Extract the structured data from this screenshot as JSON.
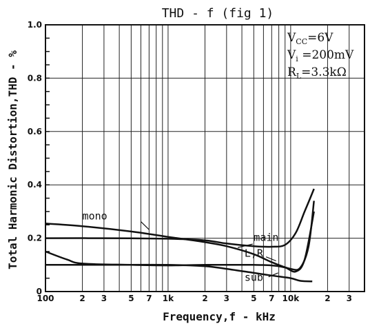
{
  "chart_data": {
    "type": "line",
    "title": "THD - f (fig 1)",
    "xlabel": "Frequency,f - kHz",
    "ylabel": "Total Harmonic Distortion,THD - %",
    "x_scale": "log",
    "xlim": [
      100,
      40000
    ],
    "ylim": [
      0,
      1.0
    ],
    "grid": true,
    "y_ticks": [
      {
        "value": 0,
        "label": "0"
      },
      {
        "value": 0.2,
        "label": "0.2"
      },
      {
        "value": 0.4,
        "label": "0.4"
      },
      {
        "value": 0.6,
        "label": "0.6"
      },
      {
        "value": 0.8,
        "label": "0.8"
      },
      {
        "value": 1.0,
        "label": "1.0"
      }
    ],
    "x_ticks": [
      {
        "value": 100,
        "label": "100"
      },
      {
        "value": 200,
        "label": "2"
      },
      {
        "value": 300,
        "label": "3"
      },
      {
        "value": 500,
        "label": "5"
      },
      {
        "value": 700,
        "label": "7"
      },
      {
        "value": 1000,
        "label": "1k"
      },
      {
        "value": 2000,
        "label": "2"
      },
      {
        "value": 3000,
        "label": "3"
      },
      {
        "value": 5000,
        "label": "5"
      },
      {
        "value": 7000,
        "label": "7"
      },
      {
        "value": 10000,
        "label": "10k"
      },
      {
        "value": 20000,
        "label": "2"
      },
      {
        "value": 30000,
        "label": "3"
      }
    ],
    "series": [
      {
        "name": "mono",
        "x": [
          100,
          200,
          500,
          1000,
          2000,
          3000,
          5000,
          7000,
          10000,
          12000,
          14000,
          15500
        ],
        "y": [
          0.255,
          0.245,
          0.225,
          0.205,
          0.185,
          0.17,
          0.14,
          0.11,
          0.085,
          0.09,
          0.17,
          0.34
        ]
      },
      {
        "name": "main",
        "x": [
          100,
          300,
          1000,
          2000,
          3000,
          5000,
          7000,
          9000,
          11000,
          13000,
          15500
        ],
        "y": [
          0.2,
          0.2,
          0.198,
          0.192,
          0.18,
          0.17,
          0.168,
          0.175,
          0.22,
          0.3,
          0.385
        ]
      },
      {
        "name": "L,R",
        "x": [
          100,
          150,
          200,
          500,
          1000,
          2000,
          3000,
          5000,
          7000,
          9000,
          11000,
          13000,
          15500
        ],
        "y": [
          0.15,
          0.12,
          0.105,
          0.1,
          0.098,
          0.1,
          0.1,
          0.1,
          0.098,
          0.09,
          0.075,
          0.12,
          0.3
        ]
      },
      {
        "name": "sub",
        "x": [
          100,
          300,
          1000,
          2000,
          3000,
          5000,
          7000,
          10000,
          12000,
          15000
        ],
        "y": [
          0.1,
          0.1,
          0.1,
          0.095,
          0.085,
          0.07,
          0.06,
          0.05,
          0.04,
          0.038
        ]
      }
    ],
    "annotations": [
      {
        "text": "mono",
        "x": 200,
        "y": 0.27
      },
      {
        "text": "main",
        "x": 5000,
        "y": 0.19
      },
      {
        "text": "L,R",
        "x": 4200,
        "y": 0.13
      },
      {
        "text": "sub",
        "x": 4200,
        "y": 0.04
      }
    ],
    "conditions": [
      "VCC=6V",
      "Vi=200mV",
      "RL=3.3kΩ"
    ]
  }
}
